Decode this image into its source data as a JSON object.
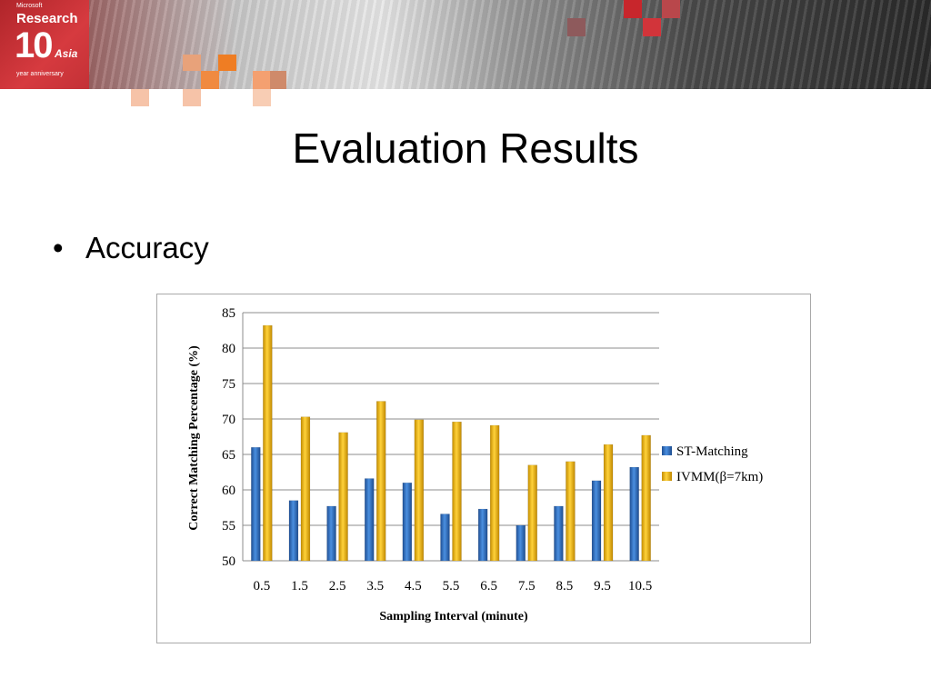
{
  "slide": {
    "title": "Evaluation Results",
    "bullet": "Accuracy"
  },
  "logo": {
    "microsoft": "Microsoft",
    "research": "Research",
    "ten": "10",
    "asia": "Asia",
    "anniversary": "year anniversary"
  },
  "colors": {
    "series1": "#2f6fbf",
    "series2": "#e6b21a",
    "accent_red": "#c8262c",
    "accent_orange": "#ef7d23"
  },
  "chart_data": {
    "type": "bar",
    "xlabel": "Sampling Interval (minute)",
    "ylabel": "Correct Matching Percentage (%)",
    "categories": [
      "0.5",
      "1.5",
      "2.5",
      "3.5",
      "4.5",
      "5.5",
      "6.5",
      "7.5",
      "8.5",
      "9.5",
      "10.5"
    ],
    "ylim": [
      50,
      85
    ],
    "yticks": [
      50,
      55,
      60,
      65,
      70,
      75,
      80,
      85
    ],
    "grid": true,
    "legend": "right",
    "series": [
      {
        "name": "ST-Matching",
        "values": [
          66.0,
          58.5,
          57.7,
          61.6,
          61.0,
          56.6,
          57.3,
          55.0,
          57.7,
          61.3,
          63.2
        ]
      },
      {
        "name": "IVMM(β=7km)",
        "values": [
          83.2,
          70.3,
          68.1,
          72.5,
          69.9,
          69.6,
          69.1,
          63.5,
          64.0,
          66.4,
          67.7
        ]
      }
    ]
  }
}
